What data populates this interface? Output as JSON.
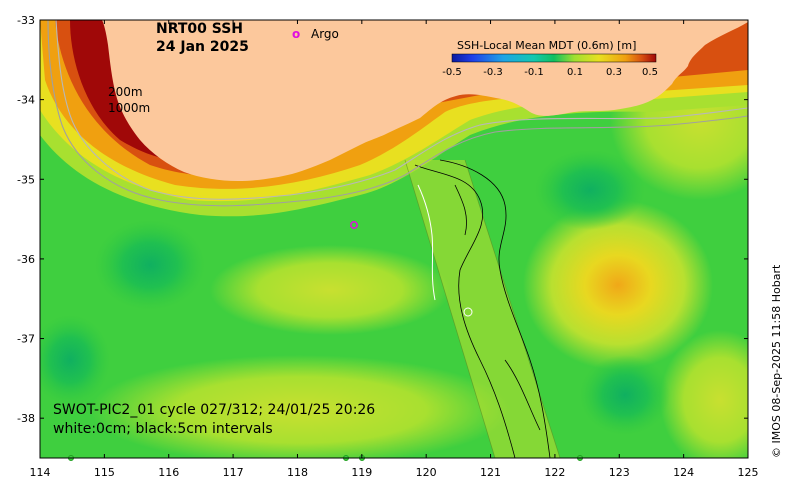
{
  "map": {
    "title_line1": "NRT00 SSH",
    "title_line2": "24 Jan 2025",
    "legend_argo_marker": "o",
    "legend_argo_label": "Argo",
    "contour_label_1": "200m",
    "contour_label_2": "1000m",
    "info_line1": "SWOT-PIC2_01 cycle 027/312; 24/01/25 20:26",
    "info_line2": "white:0cm; black:5cm intervals",
    "credit": "© IMOS 08-Sep-2025 11:58 Hobart",
    "x_ticks": [
      "114",
      "115",
      "116",
      "117",
      "118",
      "119",
      "120",
      "121",
      "122",
      "123",
      "124",
      "125"
    ],
    "y_ticks": [
      "-33",
      "-34",
      "-35",
      "-36",
      "-37",
      "-38"
    ],
    "lon_range": [
      114,
      125
    ],
    "lat_range": [
      -38.5,
      -33
    ],
    "colorbar": {
      "title": "SSH-Local Mean MDT (0.6m) [m]",
      "ticks": [
        "-0.5",
        "-0.3",
        "-0.1",
        "0.1",
        "0.3",
        "0.5"
      ],
      "colors": [
        "#0a1aa0",
        "#1f3fe8",
        "#1fa4e6",
        "#14c8b0",
        "#10c060",
        "#3cd03c",
        "#a0e030",
        "#e8e020",
        "#f0a010",
        "#d85010",
        "#a00808"
      ]
    },
    "colors": {
      "land": "#fcc89c",
      "argo": "#e010e0",
      "ocean_base": "#3fcf3f"
    }
  }
}
